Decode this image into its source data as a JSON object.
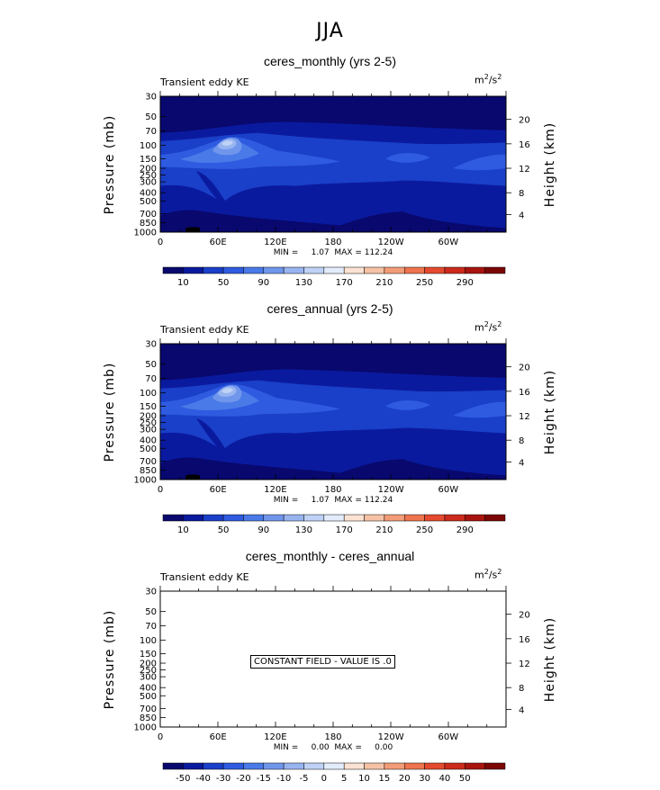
{
  "figure": {
    "title": "JJA"
  },
  "panels": [
    {
      "title": "ceres_monthly (yrs 2-5)",
      "left_label": "Transient eddy KE",
      "units_base": "m",
      "units_exp": "2",
      "units_mid": "/s",
      "units_exp2": "2",
      "stats": "MIN =     1.07  MAX = 112.24",
      "constant_text": ""
    },
    {
      "title": "ceres_annual (yrs 2-5)",
      "left_label": "Transient eddy KE",
      "units_base": "m",
      "units_exp": "2",
      "units_mid": "/s",
      "units_exp2": "2",
      "stats": "MIN =     1.07  MAX = 112.24",
      "constant_text": ""
    },
    {
      "title": "ceres_monthly - ceres_annual",
      "left_label": "Transient eddy KE",
      "units_base": "m",
      "units_exp": "2",
      "units_mid": "/s",
      "units_exp2": "2",
      "stats": "MIN =     0.00  MAX =     0.00",
      "constant_text": "CONSTANT FIELD - VALUE IS .0"
    }
  ],
  "chart_data": [
    {
      "type": "heatmap",
      "title": "ceres_monthly (yrs 2-5)",
      "xlabel": "",
      "ylabel": "Pressure (mb)",
      "y2label": "Height (km)",
      "x_ticks": [
        "0",
        "60E",
        "120E",
        "180",
        "120W",
        "60W"
      ],
      "y_ticks": [
        "30",
        "50",
        "70",
        "100",
        "150",
        "200",
        "250",
        "300",
        "400",
        "500",
        "700",
        "850",
        "1000"
      ],
      "y2_ticks": [
        "20",
        "16",
        "12",
        "8",
        "4"
      ],
      "min": 1.07,
      "max": 112.24,
      "colorbar_labels": [
        "10",
        "50",
        "90",
        "130",
        "170",
        "210",
        "250",
        "290"
      ],
      "colorbar_colors": [
        "#08086e",
        "#0a1a9e",
        "#1a3fc8",
        "#2e5be0",
        "#4a7ae8",
        "#7096ec",
        "#98b4f0",
        "#bfd2f6",
        "#e2ecfa",
        "#fbe2d2",
        "#f6c2a6",
        "#f29c78",
        "#ee744e",
        "#e44a2e",
        "#cc2a1c",
        "#a8140e",
        "#7a0606"
      ]
    },
    {
      "type": "heatmap",
      "title": "ceres_annual (yrs 2-5)",
      "xlabel": "",
      "ylabel": "Pressure (mb)",
      "y2label": "Height (km)",
      "x_ticks": [
        "0",
        "60E",
        "120E",
        "180",
        "120W",
        "60W"
      ],
      "y_ticks": [
        "30",
        "50",
        "70",
        "100",
        "150",
        "200",
        "250",
        "300",
        "400",
        "500",
        "700",
        "850",
        "1000"
      ],
      "y2_ticks": [
        "20",
        "16",
        "12",
        "8",
        "4"
      ],
      "min": 1.07,
      "max": 112.24,
      "colorbar_labels": [
        "10",
        "50",
        "90",
        "130",
        "170",
        "210",
        "250",
        "290"
      ],
      "colorbar_colors": [
        "#08086e",
        "#0a1a9e",
        "#1a3fc8",
        "#2e5be0",
        "#4a7ae8",
        "#7096ec",
        "#98b4f0",
        "#bfd2f6",
        "#e2ecfa",
        "#fbe2d2",
        "#f6c2a6",
        "#f29c78",
        "#ee744e",
        "#e44a2e",
        "#cc2a1c",
        "#a8140e",
        "#7a0606"
      ]
    },
    {
      "type": "heatmap",
      "title": "ceres_monthly - ceres_annual",
      "xlabel": "",
      "ylabel": "Pressure (mb)",
      "y2label": "Height (km)",
      "x_ticks": [
        "0",
        "60E",
        "120E",
        "180",
        "120W",
        "60W"
      ],
      "y_ticks": [
        "30",
        "50",
        "70",
        "100",
        "150",
        "200",
        "250",
        "300",
        "400",
        "500",
        "700",
        "850",
        "1000"
      ],
      "y2_ticks": [
        "20",
        "16",
        "12",
        "8",
        "4"
      ],
      "min": 0.0,
      "max": 0.0,
      "colorbar_labels": [
        "-50",
        "-40",
        "-30",
        "-20",
        "-15",
        "-10",
        "-5",
        "0",
        "5",
        "10",
        "15",
        "20",
        "30",
        "40",
        "50"
      ],
      "colorbar_colors": [
        "#08086e",
        "#0a1a9e",
        "#1a3fc8",
        "#2e5be0",
        "#4a7ae8",
        "#7096ec",
        "#98b4f0",
        "#bfd2f6",
        "#e2ecfa",
        "#fbe2d2",
        "#f6c2a6",
        "#f29c78",
        "#ee744e",
        "#e44a2e",
        "#cc2a1c",
        "#a8140e",
        "#7a0606"
      ]
    }
  ],
  "field_colors": {
    "c0": "#08086e",
    "c1": "#0a1a9e",
    "c2": "#1a3fc8",
    "c3": "#2e5be0",
    "c4": "#4a7ae8",
    "c5": "#7096ec",
    "c6": "#98b4f0",
    "c7": "#bfd2f6"
  }
}
